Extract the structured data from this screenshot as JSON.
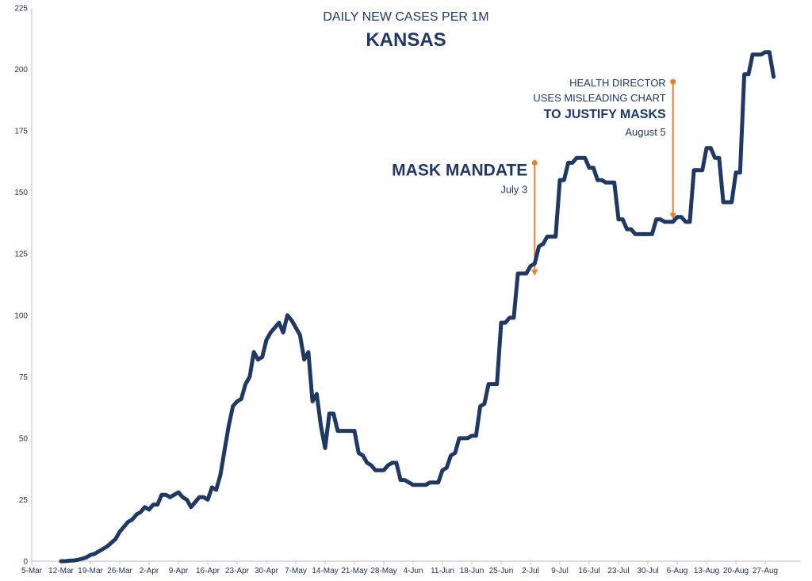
{
  "chart_data": {
    "type": "line",
    "title": "DAILY NEW CASES PER 1M",
    "subtitle": "KANSAS",
    "xlabel": "",
    "ylabel": "",
    "ylim": [
      0,
      225
    ],
    "y_ticks": [
      0,
      25,
      50,
      75,
      100,
      125,
      150,
      175,
      200,
      225
    ],
    "x_tick_labels": [
      "5-Mar",
      "12-Mar",
      "19-Mar",
      "26-Mar",
      "2-Apr",
      "9-Apr",
      "16-Apr",
      "23-Apr",
      "30-Apr",
      "7-May",
      "14-May",
      "21-May",
      "28-May",
      "4-Jun",
      "11-Jun",
      "18-Jun",
      "25-Jun",
      "2-Jul",
      "9-Jul",
      "16-Jul",
      "23-Jul",
      "30-Jul",
      "6-Aug",
      "13-Aug",
      "20-Aug",
      "27-Aug"
    ],
    "x_start_label": "5-Mar",
    "grid": false,
    "legend": "none",
    "line_color": "#1f3864",
    "annotation_color": "#ed7d31",
    "series": [
      {
        "values": [
          [
            7,
            0
          ],
          [
            8,
            0
          ],
          [
            9,
            0.2
          ],
          [
            10,
            0.3
          ],
          [
            11,
            0.5
          ],
          [
            12,
            1
          ],
          [
            13,
            1.5
          ],
          [
            14,
            2.5
          ],
          [
            15,
            3
          ],
          [
            16,
            4
          ],
          [
            17,
            5
          ],
          [
            18,
            6
          ],
          [
            19,
            7.5
          ],
          [
            20,
            9
          ],
          [
            21,
            12
          ],
          [
            22,
            14
          ],
          [
            23,
            16
          ],
          [
            24,
            17
          ],
          [
            25,
            19
          ],
          [
            26,
            20
          ],
          [
            27,
            22
          ],
          [
            28,
            21
          ],
          [
            29,
            23
          ],
          [
            30,
            23
          ],
          [
            31,
            27
          ],
          [
            32,
            27
          ],
          [
            33,
            26
          ],
          [
            34,
            27
          ],
          [
            35,
            28
          ],
          [
            36,
            26
          ],
          [
            37,
            25
          ],
          [
            38,
            22
          ],
          [
            39,
            24
          ],
          [
            40,
            26
          ],
          [
            41,
            26
          ],
          [
            42,
            25
          ],
          [
            43,
            30
          ],
          [
            44,
            29
          ],
          [
            45,
            35
          ],
          [
            46,
            45
          ],
          [
            47,
            55
          ],
          [
            48,
            63
          ],
          [
            49,
            65
          ],
          [
            50,
            66
          ],
          [
            51,
            72
          ],
          [
            52,
            75
          ],
          [
            53,
            85
          ],
          [
            54,
            82
          ],
          [
            55,
            83
          ],
          [
            56,
            90
          ],
          [
            57,
            93
          ],
          [
            58,
            95
          ],
          [
            59,
            97
          ],
          [
            60,
            93
          ],
          [
            61,
            100
          ],
          [
            62,
            98
          ],
          [
            63,
            95
          ],
          [
            64,
            92
          ],
          [
            65,
            82
          ],
          [
            66,
            85
          ],
          [
            67,
            65
          ],
          [
            68,
            68
          ],
          [
            69,
            55
          ],
          [
            70,
            46
          ],
          [
            71,
            60
          ],
          [
            72,
            60
          ],
          [
            73,
            53
          ],
          [
            74,
            53
          ],
          [
            75,
            53
          ],
          [
            76,
            53
          ],
          [
            77,
            53
          ],
          [
            78,
            44
          ],
          [
            79,
            43
          ],
          [
            80,
            40
          ],
          [
            81,
            39
          ],
          [
            82,
            37
          ],
          [
            83,
            37
          ],
          [
            84,
            37
          ],
          [
            85,
            39
          ],
          [
            86,
            40
          ],
          [
            87,
            40
          ],
          [
            88,
            33
          ],
          [
            89,
            33
          ],
          [
            90,
            32
          ],
          [
            91,
            31
          ],
          [
            92,
            31
          ],
          [
            93,
            31
          ],
          [
            94,
            31
          ],
          [
            95,
            32
          ],
          [
            96,
            32
          ],
          [
            97,
            32
          ],
          [
            98,
            37
          ],
          [
            99,
            38
          ],
          [
            100,
            43
          ],
          [
            101,
            44
          ],
          [
            102,
            50
          ],
          [
            103,
            50
          ],
          [
            104,
            50
          ],
          [
            105,
            51
          ],
          [
            106,
            51
          ],
          [
            107,
            63
          ],
          [
            108,
            64
          ],
          [
            109,
            72
          ],
          [
            110,
            72
          ],
          [
            111,
            72
          ],
          [
            112,
            97
          ],
          [
            113,
            97
          ],
          [
            114,
            99
          ],
          [
            115,
            99
          ],
          [
            116,
            117
          ],
          [
            117,
            117
          ],
          [
            118,
            117
          ],
          [
            119,
            120
          ],
          [
            120,
            121
          ],
          [
            121,
            128
          ],
          [
            122,
            129
          ],
          [
            123,
            132
          ],
          [
            124,
            132
          ],
          [
            125,
            132
          ],
          [
            126,
            155
          ],
          [
            127,
            155
          ],
          [
            128,
            162
          ],
          [
            129,
            162
          ],
          [
            130,
            164
          ],
          [
            131,
            164
          ],
          [
            132,
            164
          ],
          [
            133,
            160
          ],
          [
            134,
            160
          ],
          [
            135,
            155
          ],
          [
            136,
            155
          ],
          [
            137,
            154
          ],
          [
            138,
            154
          ],
          [
            139,
            154
          ],
          [
            140,
            139
          ],
          [
            141,
            139
          ],
          [
            142,
            135
          ],
          [
            143,
            135
          ],
          [
            144,
            133
          ],
          [
            145,
            133
          ],
          [
            146,
            133
          ],
          [
            147,
            133
          ],
          [
            148,
            133
          ],
          [
            149,
            139
          ],
          [
            150,
            139
          ],
          [
            151,
            138
          ],
          [
            152,
            138
          ],
          [
            153,
            138
          ],
          [
            154,
            140
          ],
          [
            155,
            140
          ],
          [
            156,
            138
          ],
          [
            157,
            138
          ],
          [
            158,
            159
          ],
          [
            159,
            159
          ],
          [
            160,
            159
          ],
          [
            161,
            168
          ],
          [
            162,
            168
          ],
          [
            163,
            164
          ],
          [
            164,
            164
          ],
          [
            165,
            146
          ],
          [
            166,
            146
          ],
          [
            167,
            146
          ],
          [
            168,
            158
          ],
          [
            169,
            158
          ],
          [
            170,
            198
          ],
          [
            171,
            198
          ],
          [
            172,
            206
          ],
          [
            173,
            206
          ],
          [
            174,
            206
          ],
          [
            175,
            207
          ],
          [
            176,
            207
          ],
          [
            177,
            197
          ]
        ]
      }
    ],
    "annotations": [
      {
        "lines": [
          "MASK MANDATE"
        ],
        "date": "July 3",
        "x": 120,
        "y_top": 162,
        "y_arrow": 116
      },
      {
        "lines": [
          "HEALTH DIRECTOR",
          "USES MISLEADING CHART",
          "TO JUSTIFY MASKS"
        ],
        "date": "August 5",
        "x": 153,
        "y_top": 195,
        "y_arrow": 139
      }
    ]
  }
}
